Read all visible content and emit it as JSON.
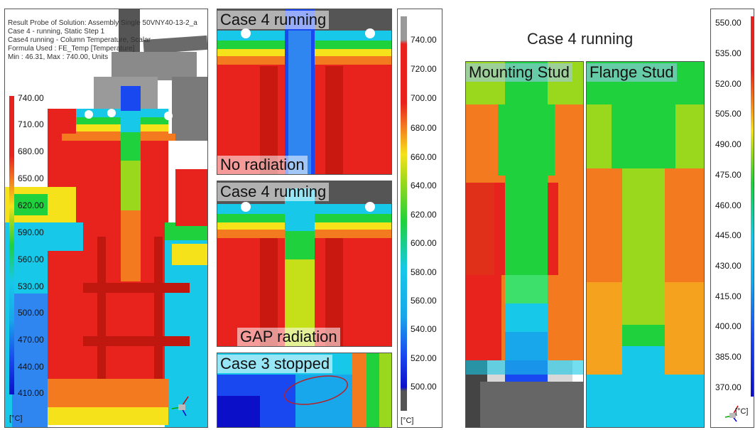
{
  "left_panel": {
    "info_lines": [
      "Result Probe of Solution: Assembly Single 50VNY40-13-2_a",
      "Case 4 - running, Static Step 1",
      "Case4 running - Column Temperature, Scalar",
      "Formula Used : FE_Temp [Temperature]",
      "Min : 46.31, Max : 740.00, Units"
    ],
    "colorbar_labels": [
      "740.00",
      "710.00",
      "680.00",
      "650.00",
      "620.00",
      "590.00",
      "560.00",
      "530.00",
      "500.00",
      "470.00",
      "440.00",
      "410.00"
    ],
    "unit_label": "[°C]"
  },
  "middle_panels": {
    "top": {
      "title": "Case 4 running",
      "subtitle": "No radiation"
    },
    "middle": {
      "title": "Case 4 running",
      "subtitle": "GAP radiation"
    },
    "bottom": {
      "title": "Case 3 stopped"
    }
  },
  "middle_colorbar": {
    "labels": [
      "740.00",
      "720.00",
      "700.00",
      "680.00",
      "660.00",
      "640.00",
      "620.00",
      "600.00",
      "580.00",
      "560.00",
      "540.00",
      "520.00",
      "500.00"
    ],
    "unit_label": "[°C]"
  },
  "right_section": {
    "title": "Case 4 running",
    "mounting_label": "Mounting Stud",
    "flange_label": "Flange Stud"
  },
  "right_colorbar": {
    "labels": [
      "550.00",
      "535.00",
      "520.00",
      "505.00",
      "490.00",
      "475.00",
      "460.00",
      "445.00",
      "430.00",
      "415.00",
      "400.00",
      "385.00",
      "370.00"
    ],
    "unit_label": "[°C]"
  },
  "colors": {
    "red": "#e8231e",
    "orange": "#f47a1f",
    "yellow": "#f5e21a",
    "green": "#1fd13c",
    "cyan": "#17c8e8",
    "blue": "#1a48f0",
    "dark_blue": "#0b0fc8",
    "grey": "#6a6a6a"
  }
}
